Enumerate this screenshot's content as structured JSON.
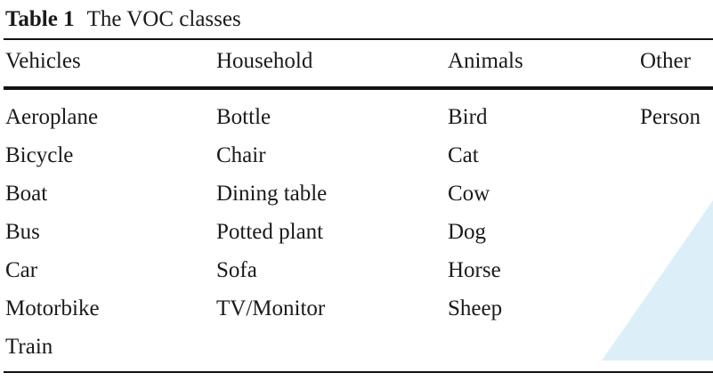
{
  "caption": {
    "label": "Table 1",
    "title": "The VOC classes"
  },
  "table": {
    "columns": [
      {
        "header": "Vehicles",
        "items": [
          "Aeroplane",
          "Bicycle",
          "Boat",
          "Bus",
          "Car",
          "Motorbike",
          "Train"
        ]
      },
      {
        "header": "Household",
        "items": [
          "Bottle",
          "Chair",
          "Dining table",
          "Potted plant",
          "Sofa",
          "TV/Monitor"
        ]
      },
      {
        "header": "Animals",
        "items": [
          "Bird",
          "Cat",
          "Cow",
          "Dog",
          "Horse",
          "Sheep"
        ]
      },
      {
        "header": "Other",
        "items": [
          "Person"
        ]
      }
    ]
  }
}
